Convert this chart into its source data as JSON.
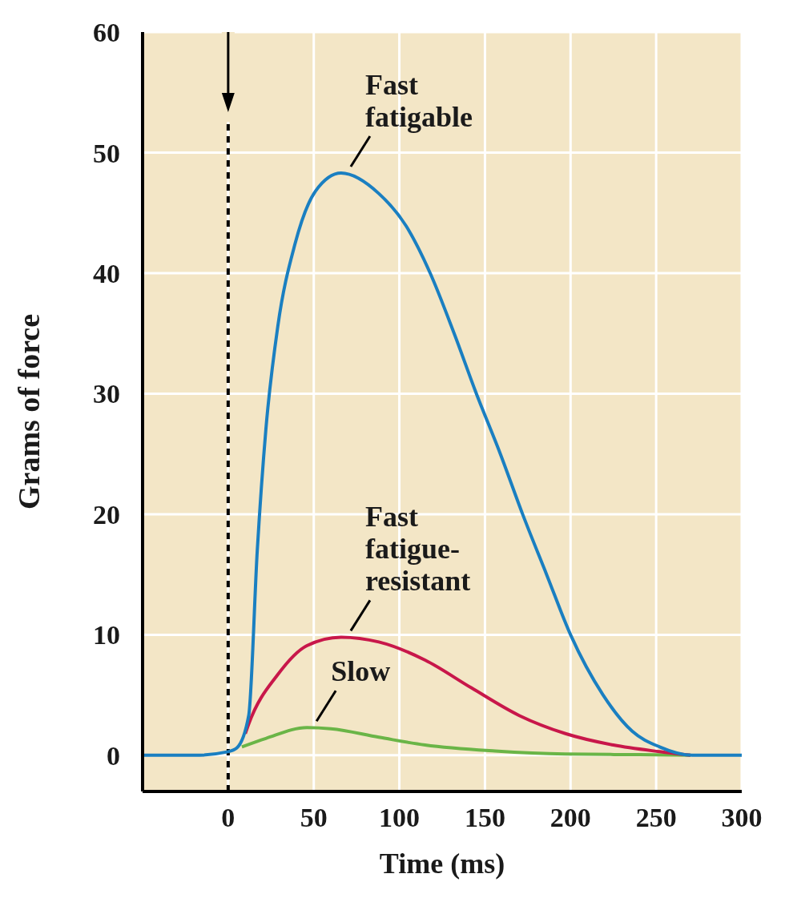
{
  "chart_data": {
    "type": "line",
    "xlabel": "Time (ms)",
    "ylabel": "Grams of force",
    "xlim": [
      -50,
      300
    ],
    "ylim": [
      -3,
      60
    ],
    "xticks": [
      0,
      50,
      100,
      150,
      200,
      250,
      300
    ],
    "yticks": [
      0,
      10,
      20,
      30,
      40,
      50,
      60
    ],
    "grid": true,
    "legend": false,
    "marker": "none",
    "line_style": "solid",
    "series": [
      {
        "name": "Fast fatigable",
        "color": "#1a7fc1",
        "x": [
          -50,
          -20,
          0,
          5,
          12,
          17,
          22,
          29,
          39,
          51,
          66,
          88,
          104,
          118,
          132,
          145,
          159,
          172,
          186,
          200,
          219,
          236,
          252,
          271,
          300
        ],
        "values": [
          0,
          0,
          0.3,
          0.6,
          3.3,
          17,
          27,
          35.6,
          42.4,
          46.8,
          48.3,
          46.6,
          43.9,
          40,
          35,
          30,
          25,
          20,
          15,
          10,
          5,
          2,
          0.7,
          0,
          0
        ]
      },
      {
        "name": "Fast fatigue-resistant",
        "color": "#c8174a",
        "x": [
          10,
          12,
          29,
          46,
          66,
          88,
          115,
          142,
          170,
          197,
          225,
          252,
          270
        ],
        "values": [
          1.8,
          2.6,
          6.7,
          9.1,
          9.8,
          9.4,
          7.9,
          5.6,
          3.3,
          1.8,
          0.85,
          0.3,
          0
        ]
      },
      {
        "name": "Slow",
        "color": "#6ab547",
        "x": [
          8,
          22,
          46,
          60,
          88,
          115,
          156,
          197,
          240,
          270
        ],
        "values": [
          0.7,
          1.4,
          2.3,
          2.2,
          1.5,
          0.85,
          0.35,
          0.1,
          0.05,
          0
        ]
      }
    ],
    "ref_lines": [
      {
        "axis": "x",
        "value": 0,
        "color": "#000000",
        "line_style": "dashed"
      }
    ]
  }
}
